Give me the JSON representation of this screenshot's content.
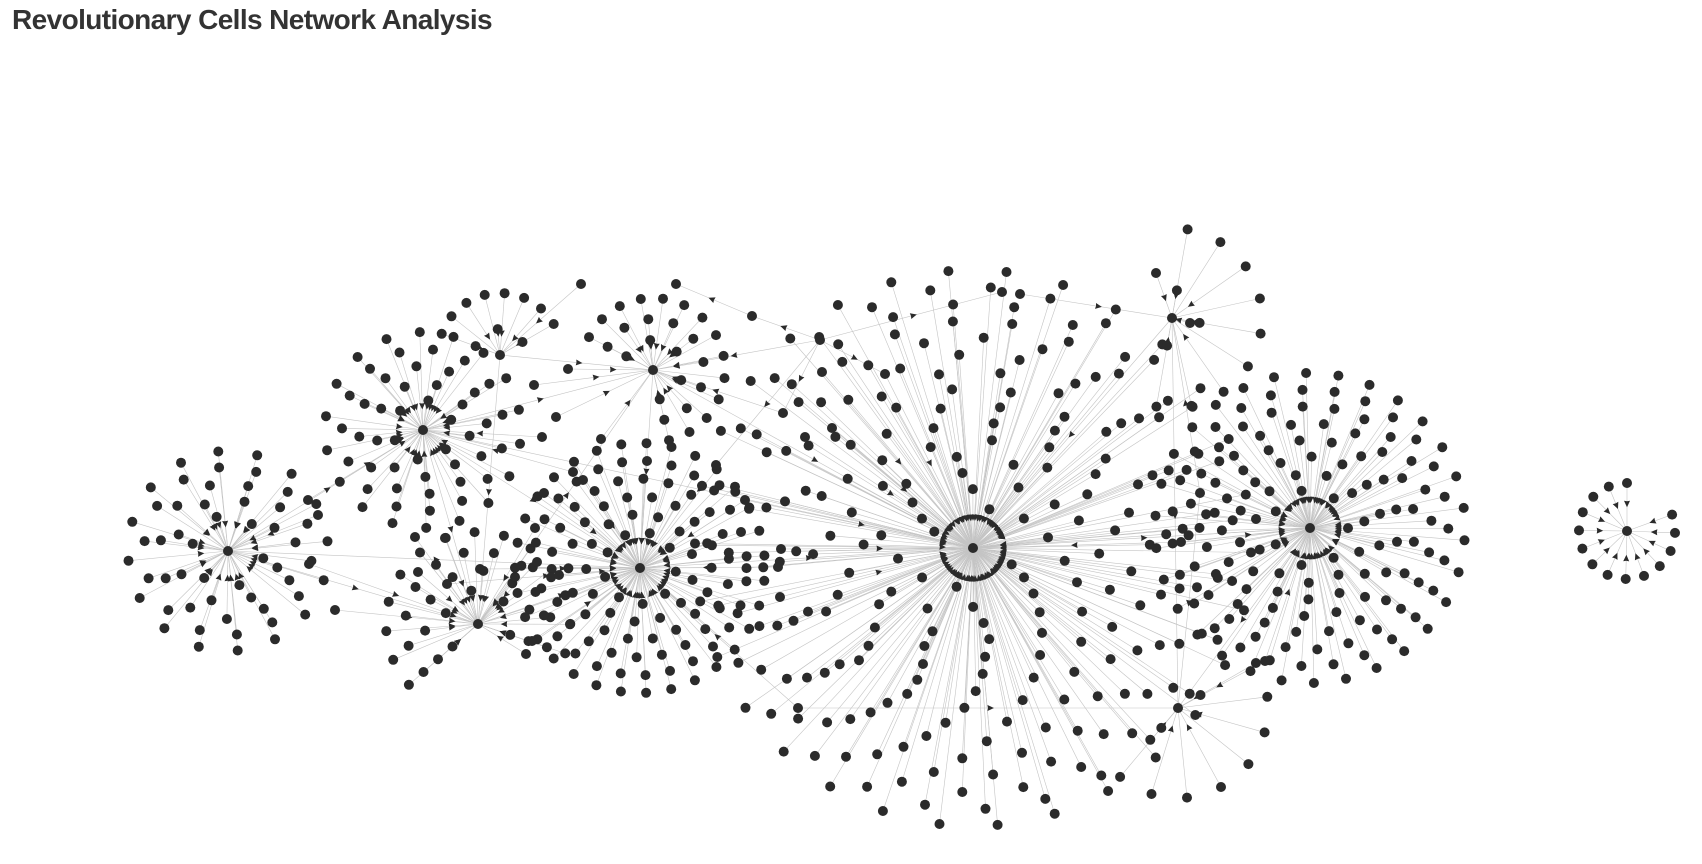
{
  "title": "Revolutionary Cells Network Analysis",
  "colors": {
    "node": "#2b2b2b",
    "edge": "#c4c4c4",
    "arrow": "#2b2b2b",
    "title": "#333333",
    "background": "#ffffff"
  },
  "graph": {
    "directed": true,
    "clusters": [
      {
        "id": "cell-1",
        "leaves": 55
      },
      {
        "id": "cell-2",
        "leaves": 60
      },
      {
        "id": "cell-3",
        "leaves": 11
      },
      {
        "id": "cell-4",
        "leaves": 28
      },
      {
        "id": "cell-5",
        "leaves": 38
      },
      {
        "id": "cell-6",
        "leaves": 120
      },
      {
        "id": "cell-7",
        "leaves": 250
      },
      {
        "id": "cell-8",
        "leaves": 150
      },
      {
        "id": "cell-9",
        "leaves": 12
      },
      {
        "id": "cell-10",
        "leaves": 10
      },
      {
        "id": "cell-11",
        "leaves": 14
      }
    ]
  }
}
